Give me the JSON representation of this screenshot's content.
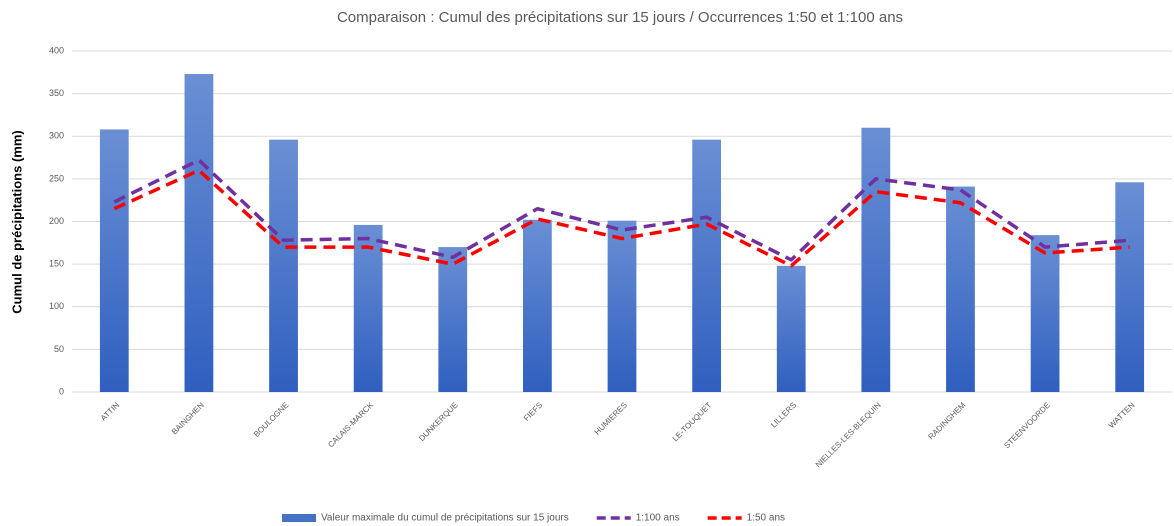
{
  "chart_data": {
    "type": "bar_line",
    "title": "Comparaison : Cumul des précipitations sur 15 jours / Occurrences 1:50 et 1:100 ans",
    "y_label": "Cumul de précipitations (mm)",
    "categories": [
      "ATTIN",
      "BAINGHEN",
      "BOULOGNE",
      "CALAIS-MARCK",
      "DUNKERQUE",
      "FIEFS",
      "HUMIERES",
      "LE-TOUQUET",
      "LILLERS",
      "NIELLES-LES-BLEQUIN",
      "RADINGHEM",
      "STEENVOORDE",
      "WATTEN"
    ],
    "series": [
      {
        "name": "Valeur maximale du cumul de précipitations sur 15 jours",
        "kind": "bar",
        "color": "#4472c4",
        "values": [
          308,
          373,
          296,
          196,
          170,
          202,
          201,
          296,
          148,
          310,
          241,
          184,
          246
        ]
      },
      {
        "name": "1:100 ans",
        "kind": "line",
        "color": "#7030a0",
        "values": [
          223,
          272,
          178,
          180,
          158,
          215,
          190,
          205,
          155,
          250,
          237,
          170,
          178
        ]
      },
      {
        "name": "1:50 ans",
        "kind": "line",
        "color": "#ff0000",
        "values": [
          215,
          260,
          170,
          170,
          150,
          203,
          180,
          197,
          148,
          235,
          222,
          163,
          170
        ]
      }
    ],
    "ylim": [
      0,
      400
    ],
    "yticks": [
      0,
      50,
      100,
      150,
      200,
      250,
      300,
      350,
      400
    ],
    "grid": true,
    "legend": "bottom"
  }
}
